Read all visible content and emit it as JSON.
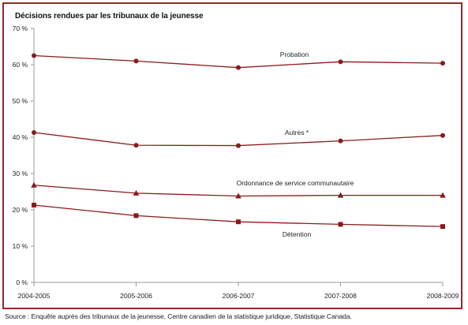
{
  "chart_data": {
    "type": "line",
    "title": "Décisions rendues par les tribunaux de la jeunesse",
    "categories": [
      "2004-2005",
      "2005-2006",
      "2006-2007",
      "2007-2008",
      "2008-2009"
    ],
    "y_ticks": [
      0,
      10,
      20,
      30,
      40,
      50,
      60,
      70
    ],
    "y_tick_labels": [
      "0 %",
      "10 %",
      "20 %",
      "30 %",
      "40 %",
      "50 %",
      "60 %",
      "70 %"
    ],
    "ylim": [
      0,
      70
    ],
    "xlabel": "",
    "ylabel": "",
    "grid": false,
    "series_color": "#8b1a1a",
    "series": [
      {
        "name": "Probation",
        "marker": "circle",
        "values": [
          62.5,
          61.0,
          59.2,
          60.8,
          60.4
        ]
      },
      {
        "name": "Autres *",
        "marker": "circle",
        "values": [
          41.3,
          37.8,
          37.7,
          39.0,
          40.5
        ]
      },
      {
        "name": "Ordonnance de service communautaire",
        "marker": "triangle",
        "values": [
          26.8,
          24.6,
          23.8,
          24.0,
          24.0
        ]
      },
      {
        "name": "Détention",
        "marker": "square",
        "values": [
          21.3,
          18.4,
          16.7,
          16.0,
          15.4
        ]
      }
    ]
  },
  "source": "Source : Enquête auprès des tribunaux de la jeunesse, Centre canadien de la statistique juridique, Statistique Canada."
}
